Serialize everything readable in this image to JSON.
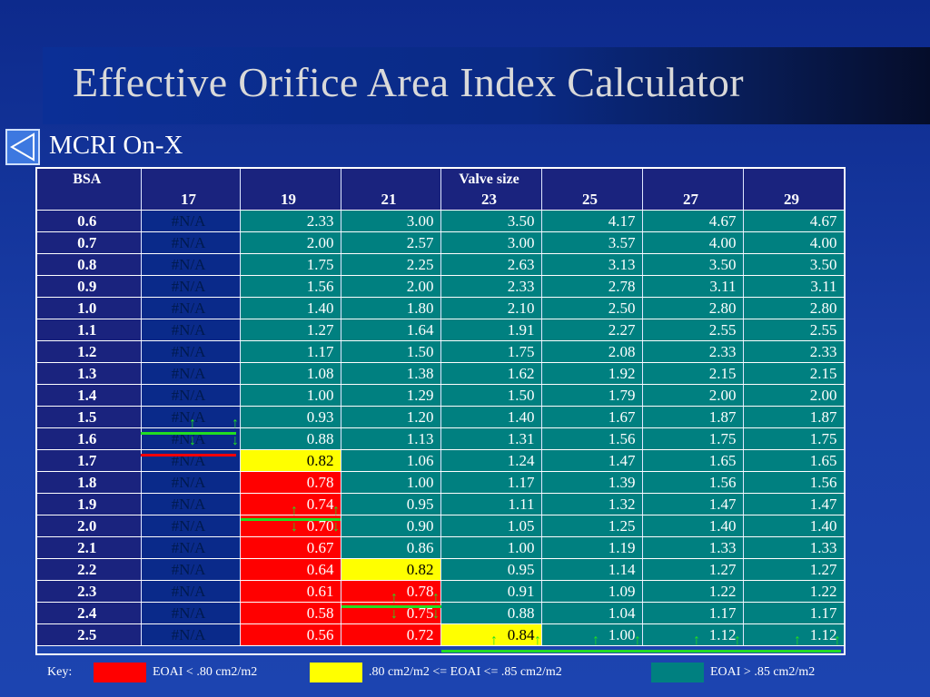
{
  "slide": {
    "title": "Effective Orifice Area Index Calculator",
    "subtitle": "MCRI On-X",
    "back_icon": "triangle-left-icon"
  },
  "table": {
    "bsa_header": "BSA",
    "valve_header": "Valve size",
    "valve_sizes": [
      "17",
      "19",
      "21",
      "23",
      "25",
      "27",
      "29"
    ],
    "rows": [
      {
        "bsa": "0.6",
        "values": [
          "#N/A",
          "2.33",
          "3.00",
          "3.50",
          "4.17",
          "4.67",
          "4.67"
        ],
        "colors": [
          "na",
          "teal",
          "teal",
          "teal",
          "teal",
          "teal",
          "teal"
        ]
      },
      {
        "bsa": "0.7",
        "values": [
          "#N/A",
          "2.00",
          "2.57",
          "3.00",
          "3.57",
          "4.00",
          "4.00"
        ],
        "colors": [
          "na",
          "teal",
          "teal",
          "teal",
          "teal",
          "teal",
          "teal"
        ]
      },
      {
        "bsa": "0.8",
        "values": [
          "#N/A",
          "1.75",
          "2.25",
          "2.63",
          "3.13",
          "3.50",
          "3.50"
        ],
        "colors": [
          "na",
          "teal",
          "teal",
          "teal",
          "teal",
          "teal",
          "teal"
        ]
      },
      {
        "bsa": "0.9",
        "values": [
          "#N/A",
          "1.56",
          "2.00",
          "2.33",
          "2.78",
          "3.11",
          "3.11"
        ],
        "colors": [
          "na",
          "teal",
          "teal",
          "teal",
          "teal",
          "teal",
          "teal"
        ]
      },
      {
        "bsa": "1.0",
        "values": [
          "#N/A",
          "1.40",
          "1.80",
          "2.10",
          "2.50",
          "2.80",
          "2.80"
        ],
        "colors": [
          "na",
          "teal",
          "teal",
          "teal",
          "teal",
          "teal",
          "teal"
        ]
      },
      {
        "bsa": "1.1",
        "values": [
          "#N/A",
          "1.27",
          "1.64",
          "1.91",
          "2.27",
          "2.55",
          "2.55"
        ],
        "colors": [
          "na",
          "teal",
          "teal",
          "teal",
          "teal",
          "teal",
          "teal"
        ]
      },
      {
        "bsa": "1.2",
        "values": [
          "#N/A",
          "1.17",
          "1.50",
          "1.75",
          "2.08",
          "2.33",
          "2.33"
        ],
        "colors": [
          "na",
          "teal",
          "teal",
          "teal",
          "teal",
          "teal",
          "teal"
        ]
      },
      {
        "bsa": "1.3",
        "values": [
          "#N/A",
          "1.08",
          "1.38",
          "1.62",
          "1.92",
          "2.15",
          "2.15"
        ],
        "colors": [
          "na",
          "teal",
          "teal",
          "teal",
          "teal",
          "teal",
          "teal"
        ]
      },
      {
        "bsa": "1.4",
        "values": [
          "#N/A",
          "1.00",
          "1.29",
          "1.50",
          "1.79",
          "2.00",
          "2.00"
        ],
        "colors": [
          "na",
          "teal",
          "teal",
          "teal",
          "teal",
          "teal",
          "teal"
        ]
      },
      {
        "bsa": "1.5",
        "values": [
          "#N/A",
          "0.93",
          "1.20",
          "1.40",
          "1.67",
          "1.87",
          "1.87"
        ],
        "colors": [
          "na",
          "teal",
          "teal",
          "teal",
          "teal",
          "teal",
          "teal"
        ]
      },
      {
        "bsa": "1.6",
        "values": [
          "#N/A",
          "0.88",
          "1.13",
          "1.31",
          "1.56",
          "1.75",
          "1.75"
        ],
        "colors": [
          "na",
          "teal",
          "teal",
          "teal",
          "teal",
          "teal",
          "teal"
        ]
      },
      {
        "bsa": "1.7",
        "values": [
          "#N/A",
          "0.82",
          "1.06",
          "1.24",
          "1.47",
          "1.65",
          "1.65"
        ],
        "colors": [
          "na",
          "yellow",
          "teal",
          "teal",
          "teal",
          "teal",
          "teal"
        ]
      },
      {
        "bsa": "1.8",
        "values": [
          "#N/A",
          "0.78",
          "1.00",
          "1.17",
          "1.39",
          "1.56",
          "1.56"
        ],
        "colors": [
          "na",
          "red",
          "teal",
          "teal",
          "teal",
          "teal",
          "teal"
        ]
      },
      {
        "bsa": "1.9",
        "values": [
          "#N/A",
          "0.74",
          "0.95",
          "1.11",
          "1.32",
          "1.47",
          "1.47"
        ],
        "colors": [
          "na",
          "red",
          "teal",
          "teal",
          "teal",
          "teal",
          "teal"
        ]
      },
      {
        "bsa": "2.0",
        "values": [
          "#N/A",
          "0.70",
          "0.90",
          "1.05",
          "1.25",
          "1.40",
          "1.40"
        ],
        "colors": [
          "na",
          "red",
          "teal",
          "teal",
          "teal",
          "teal",
          "teal"
        ]
      },
      {
        "bsa": "2.1",
        "values": [
          "#N/A",
          "0.67",
          "0.86",
          "1.00",
          "1.19",
          "1.33",
          "1.33"
        ],
        "colors": [
          "na",
          "red",
          "teal",
          "teal",
          "teal",
          "teal",
          "teal"
        ]
      },
      {
        "bsa": "2.2",
        "values": [
          "#N/A",
          "0.64",
          "0.82",
          "0.95",
          "1.14",
          "1.27",
          "1.27"
        ],
        "colors": [
          "na",
          "red",
          "yellow",
          "teal",
          "teal",
          "teal",
          "teal"
        ]
      },
      {
        "bsa": "2.3",
        "values": [
          "#N/A",
          "0.61",
          "0.78",
          "0.91",
          "1.09",
          "1.22",
          "1.22"
        ],
        "colors": [
          "na",
          "red",
          "red",
          "teal",
          "teal",
          "teal",
          "teal"
        ]
      },
      {
        "bsa": "2.4",
        "values": [
          "#N/A",
          "0.58",
          "0.75",
          "0.88",
          "1.04",
          "1.17",
          "1.17"
        ],
        "colors": [
          "na",
          "red",
          "red",
          "teal",
          "teal",
          "teal",
          "teal"
        ]
      },
      {
        "bsa": "2.5",
        "values": [
          "#N/A",
          "0.56",
          "0.72",
          "0.84",
          "1.00",
          "1.12",
          "1.12"
        ],
        "colors": [
          "na",
          "red",
          "red",
          "yellow",
          "teal",
          "teal",
          "teal"
        ]
      }
    ]
  },
  "key": {
    "label": "Key:",
    "items": [
      {
        "color": "#ff0000",
        "text": "EOAI < .80 cm2/m2"
      },
      {
        "color": "#ffff00",
        "text": ".80 cm2/m2 <= EOAI <= .85 cm2/m2"
      },
      {
        "color": "#008080",
        "text": "EOAI > .85 cm2/m2"
      }
    ]
  },
  "colors": {
    "red": "#ff0000",
    "yellow": "#ffff00",
    "teal": "#008080",
    "header": "#1a237e",
    "arrow_green": "#22dd22"
  }
}
